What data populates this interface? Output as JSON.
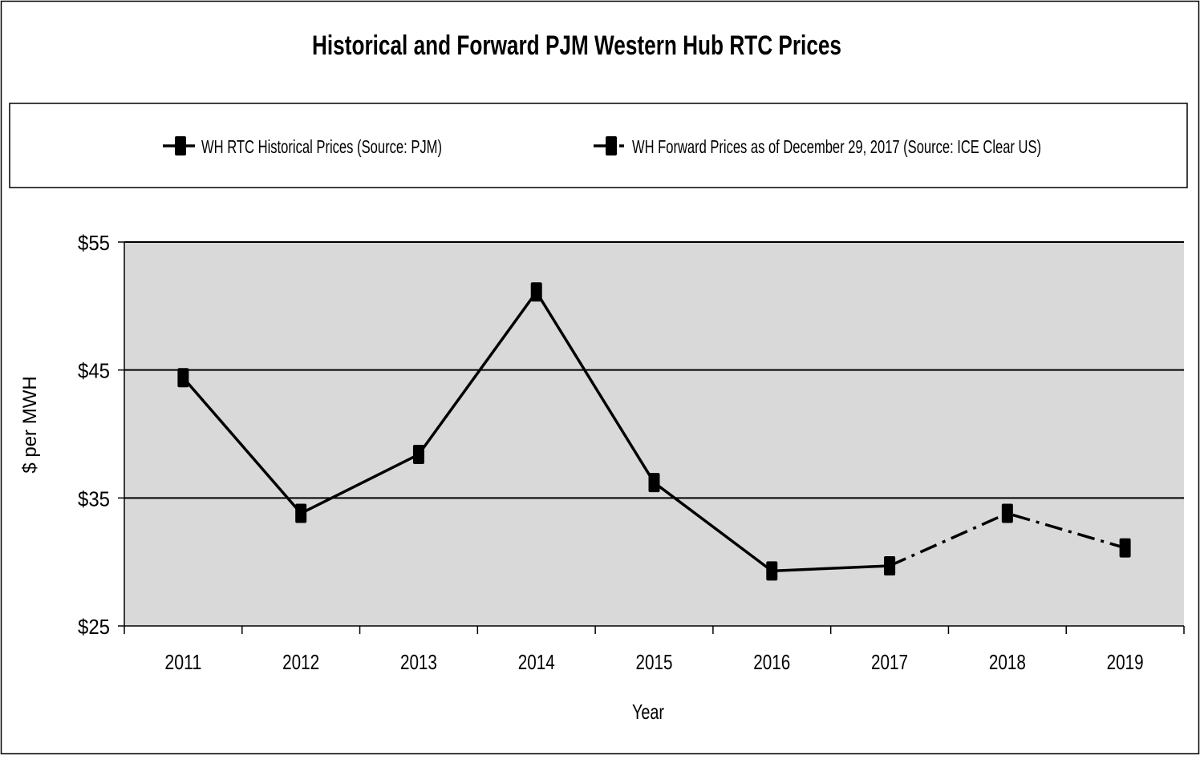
{
  "chart_data": {
    "type": "line",
    "title": "Historical and Forward PJM Western Hub RTC Prices",
    "xlabel": "Year",
    "ylabel": "$ per MWH",
    "categories": [
      "2011",
      "2012",
      "2013",
      "2014",
      "2015",
      "2016",
      "2017",
      "2018",
      "2019"
    ],
    "ylim": [
      25,
      55
    ],
    "yticks": [
      25,
      35,
      45,
      55
    ],
    "ytick_labels": [
      "$25",
      "$35",
      "$45",
      "$55"
    ],
    "grid": "horizontal",
    "legend_placement": "top",
    "plot_background": "#d9d9d9",
    "series": [
      {
        "name": "WH RTC Historical Prices (Source: PJM)",
        "style": "solid",
        "color": "#000000",
        "x": [
          "2011",
          "2012",
          "2013",
          "2014",
          "2015",
          "2016",
          "2017"
        ],
        "values": [
          44.4,
          33.8,
          38.4,
          51.1,
          36.2,
          29.3,
          29.7
        ]
      },
      {
        "name": "WH Forward Prices as of December 29, 2017 (Source: ICE Clear US)",
        "style": "dash-dot",
        "color": "#000000",
        "x": [
          "2017",
          "2018",
          "2019"
        ],
        "values": [
          29.7,
          33.8,
          31.1
        ]
      }
    ]
  }
}
